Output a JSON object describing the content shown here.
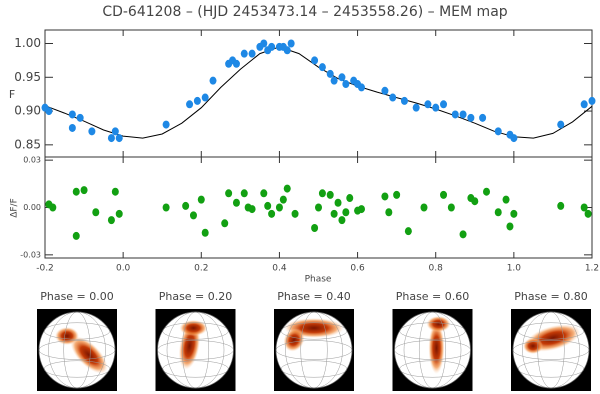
{
  "title": "CD-641208 – (HJD 2453473.14 – 2453558.26) – MEM map",
  "chart_data": [
    {
      "type": "scatter",
      "ylabel": "F",
      "xlim": [
        -0.2,
        1.2
      ],
      "ylim": [
        0.832,
        1.02
      ],
      "xticks": [
        -0.2,
        {
          "value": 0,
          "label": "0.0"
        },
        0.2,
        0.4,
        0.6,
        0.8,
        {
          "value": 1,
          "label": "1.0"
        },
        1.2
      ],
      "yticks": [
        0.85,
        {
          "value": 0.9,
          "label": "0.90"
        },
        0.95,
        {
          "value": 1,
          "label": "1.00"
        }
      ],
      "points": {
        "color": "#1e88e5",
        "x": [
          -0.2,
          -0.19,
          -0.13,
          -0.13,
          -0.11,
          -0.08,
          -0.03,
          -0.02,
          -0.01,
          0.11,
          0.17,
          0.19,
          0.21,
          0.23,
          0.27,
          0.28,
          0.29,
          0.31,
          0.33,
          0.35,
          0.36,
          0.37,
          0.38,
          0.4,
          0.41,
          0.42,
          0.43,
          0.49,
          0.51,
          0.53,
          0.54,
          0.56,
          0.57,
          0.59,
          0.6,
          0.61,
          0.67,
          0.69,
          0.72,
          0.75,
          0.78,
          0.8,
          0.82,
          0.85,
          0.87,
          0.89,
          0.92,
          0.96,
          0.99,
          1.0,
          1.12,
          1.18,
          1.2
        ],
        "values": [
          0.905,
          0.9,
          0.895,
          0.875,
          0.89,
          0.87,
          0.86,
          0.87,
          0.86,
          0.88,
          0.91,
          0.915,
          0.92,
          0.945,
          0.97,
          0.975,
          0.97,
          0.985,
          0.985,
          0.995,
          1.0,
          0.99,
          0.995,
          0.995,
          0.995,
          0.99,
          1.0,
          0.975,
          0.965,
          0.955,
          0.945,
          0.95,
          0.94,
          0.945,
          0.94,
          0.935,
          0.93,
          0.92,
          0.915,
          0.905,
          0.91,
          0.905,
          0.91,
          0.895,
          0.895,
          0.89,
          0.89,
          0.87,
          0.865,
          0.86,
          0.88,
          0.91,
          0.915
        ]
      },
      "model": {
        "color": "#000000",
        "x": [
          -0.2,
          -0.15,
          -0.1,
          -0.05,
          0,
          0.05,
          0.1,
          0.15,
          0.2,
          0.25,
          0.3,
          0.35,
          0.4,
          0.45,
          0.5,
          0.55,
          0.6,
          0.65,
          0.7,
          0.75,
          0.8,
          0.85,
          0.9,
          0.95,
          1.0,
          1.05,
          1.1,
          1.15,
          1.2
        ],
        "values": [
          0.908,
          0.897,
          0.885,
          0.872,
          0.863,
          0.86,
          0.866,
          0.882,
          0.905,
          0.935,
          0.962,
          0.985,
          0.995,
          0.985,
          0.965,
          0.948,
          0.937,
          0.928,
          0.92,
          0.912,
          0.903,
          0.893,
          0.882,
          0.87,
          0.862,
          0.86,
          0.867,
          0.884,
          0.907
        ]
      }
    },
    {
      "type": "scatter",
      "ylabel": "ΔF/F",
      "xlabel": "Phase",
      "xlim": [
        -0.2,
        1.2
      ],
      "ylim": [
        -0.032,
        0.032
      ],
      "xticks": [
        -0.2,
        {
          "value": 0,
          "label": "0.0"
        },
        0.2,
        0.4,
        0.6,
        0.8,
        {
          "value": 1,
          "label": "1.0"
        },
        1.2
      ],
      "yticks": [
        -0.03,
        {
          "value": 0,
          "label": "0.00"
        },
        0.03
      ],
      "points": {
        "color": "#12a012",
        "x": [
          -0.19,
          -0.18,
          -0.12,
          -0.12,
          -0.1,
          -0.07,
          -0.03,
          -0.02,
          -0.01,
          0.11,
          0.16,
          0.18,
          0.2,
          0.21,
          0.26,
          0.27,
          0.29,
          0.31,
          0.32,
          0.33,
          0.36,
          0.37,
          0.38,
          0.4,
          0.41,
          0.42,
          0.44,
          0.49,
          0.5,
          0.51,
          0.53,
          0.54,
          0.55,
          0.56,
          0.57,
          0.58,
          0.6,
          0.61,
          0.67,
          0.68,
          0.7,
          0.73,
          0.77,
          0.82,
          0.84,
          0.87,
          0.89,
          0.9,
          0.93,
          0.96,
          0.98,
          0.99,
          1.0,
          1.12,
          1.18,
          1.19
        ],
        "values": [
          0.002,
          0,
          0.01,
          -0.018,
          0.011,
          -0.003,
          -0.008,
          0.01,
          -0.004,
          0,
          0.001,
          -0.005,
          0.005,
          -0.016,
          -0.01,
          0.009,
          0.003,
          0.009,
          0,
          -0.001,
          0.009,
          0.001,
          -0.004,
          0,
          0.005,
          0.012,
          -0.004,
          -0.013,
          0,
          0.009,
          0.008,
          -0.004,
          0.003,
          -0.008,
          -0.003,
          0.006,
          -0.002,
          -0.001,
          0.007,
          -0.003,
          0.008,
          -0.015,
          0,
          0.008,
          0,
          -0.017,
          0.006,
          0.004,
          0.01,
          -0.003,
          0.005,
          -0.012,
          -0.004,
          0.001,
          0,
          -0.004
        ]
      }
    }
  ],
  "maps": [
    "Phase = 0.00",
    "Phase = 0.20",
    "Phase = 0.40",
    "Phase = 0.60",
    "Phase = 0.80"
  ]
}
